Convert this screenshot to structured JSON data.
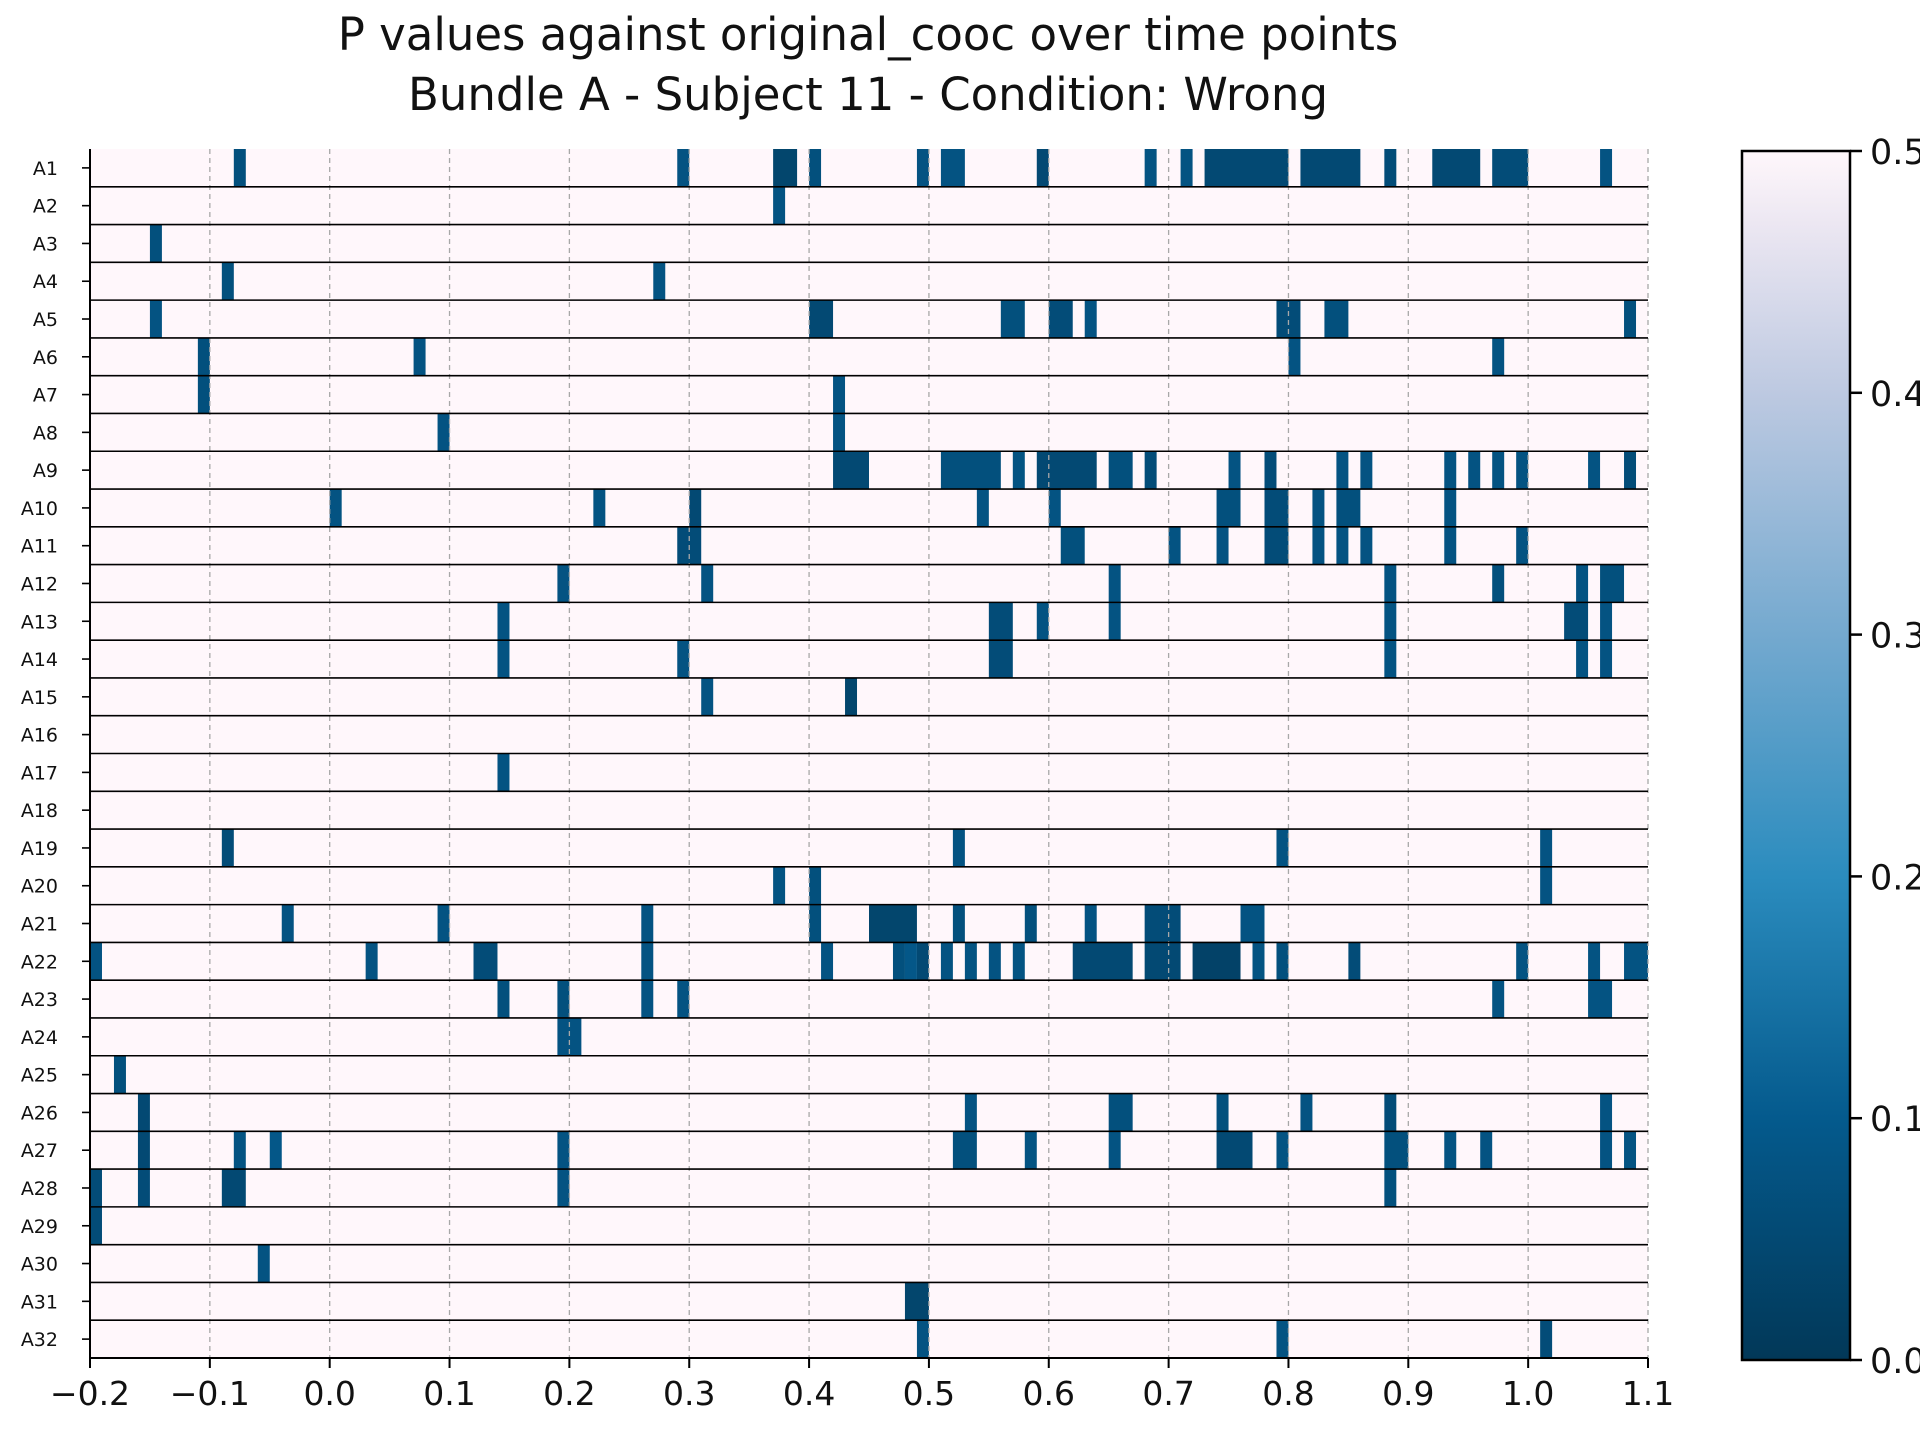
{
  "chart_data": {
    "type": "heatmap",
    "title": "P values against original_cooc over time points",
    "subtitle": "Bundle A - Subject 11 - Condition: Wrong",
    "xlabel": "",
    "ylabel": "",
    "x_ticks": [
      -0.2,
      -0.1,
      0.0,
      0.1,
      0.2,
      0.3,
      0.4,
      0.5,
      0.6,
      0.7,
      0.8,
      0.9,
      1.0,
      1.1
    ],
    "xlim": [
      -0.2,
      1.1
    ],
    "rows": [
      "A1",
      "A2",
      "A3",
      "A4",
      "A5",
      "A6",
      "A7",
      "A8",
      "A9",
      "A10",
      "A11",
      "A12",
      "A13",
      "A14",
      "A15",
      "A16",
      "A17",
      "A18",
      "A19",
      "A20",
      "A21",
      "A22",
      "A23",
      "A24",
      "A25",
      "A26",
      "A27",
      "A28",
      "A29",
      "A30",
      "A31",
      "A32"
    ],
    "colorbar": {
      "min": 0.0,
      "max": 0.5,
      "ticks": [
        0.0,
        0.1,
        0.2,
        0.3,
        0.4,
        0.5
      ],
      "colormap": "PuBu_r"
    },
    "background_value": 0.5,
    "grid": "vertical dashed at x ticks",
    "significant_cells": {
      "A1": [
        [
          -0.08,
          -0.07,
          0.07
        ],
        [
          0.29,
          0.3,
          0.08
        ],
        [
          0.37,
          0.39,
          0.04
        ],
        [
          0.4,
          0.41,
          0.07
        ],
        [
          0.49,
          0.5,
          0.08
        ],
        [
          0.51,
          0.53,
          0.08
        ],
        [
          0.59,
          0.6,
          0.05
        ],
        [
          0.68,
          0.69,
          0.08
        ],
        [
          0.71,
          0.72,
          0.08
        ],
        [
          0.73,
          0.8,
          0.05
        ],
        [
          0.81,
          0.86,
          0.05
        ],
        [
          0.88,
          0.89,
          0.06
        ],
        [
          0.92,
          0.96,
          0.05
        ],
        [
          0.97,
          1.0,
          0.06
        ],
        [
          1.06,
          1.07,
          0.08
        ]
      ],
      "A2": [
        [
          0.37,
          0.38,
          0.08
        ]
      ],
      "A3": [
        [
          -0.15,
          -0.14,
          0.07
        ]
      ],
      "A4": [
        [
          -0.09,
          -0.08,
          0.07
        ],
        [
          0.27,
          0.28,
          0.08
        ]
      ],
      "A5": [
        [
          -0.15,
          -0.14,
          0.08
        ],
        [
          0.4,
          0.42,
          0.05
        ],
        [
          0.56,
          0.58,
          0.07
        ],
        [
          0.6,
          0.62,
          0.06
        ],
        [
          0.63,
          0.64,
          0.08
        ],
        [
          0.79,
          0.81,
          0.06
        ],
        [
          0.83,
          0.85,
          0.07
        ],
        [
          1.08,
          1.09,
          0.07
        ]
      ],
      "A6": [
        [
          -0.11,
          -0.1,
          0.07
        ],
        [
          0.07,
          0.08,
          0.08
        ],
        [
          0.8,
          0.81,
          0.08
        ],
        [
          0.97,
          0.98,
          0.08
        ]
      ],
      "A7": [
        [
          -0.11,
          -0.1,
          0.07
        ],
        [
          0.42,
          0.43,
          0.08
        ]
      ],
      "A8": [
        [
          0.09,
          0.1,
          0.08
        ],
        [
          0.42,
          0.43,
          0.08
        ]
      ],
      "A9": [
        [
          0.42,
          0.45,
          0.05
        ],
        [
          0.51,
          0.56,
          0.07
        ],
        [
          0.57,
          0.58,
          0.08
        ],
        [
          0.59,
          0.64,
          0.05
        ],
        [
          0.65,
          0.67,
          0.07
        ],
        [
          0.68,
          0.69,
          0.06
        ],
        [
          0.75,
          0.76,
          0.08
        ],
        [
          0.78,
          0.79,
          0.06
        ],
        [
          0.84,
          0.85,
          0.08
        ],
        [
          0.86,
          0.87,
          0.08
        ],
        [
          0.93,
          0.94,
          0.08
        ],
        [
          0.95,
          0.96,
          0.08
        ],
        [
          0.97,
          0.98,
          0.08
        ],
        [
          0.99,
          1.0,
          0.08
        ],
        [
          1.05,
          1.06,
          0.08
        ],
        [
          1.08,
          1.09,
          0.06
        ]
      ],
      "A10": [
        [
          0.0,
          0.01,
          0.08
        ],
        [
          0.22,
          0.23,
          0.08
        ],
        [
          0.3,
          0.31,
          0.05
        ],
        [
          0.54,
          0.55,
          0.08
        ],
        [
          0.6,
          0.61,
          0.08
        ],
        [
          0.74,
          0.76,
          0.07
        ],
        [
          0.78,
          0.8,
          0.06
        ],
        [
          0.82,
          0.83,
          0.08
        ],
        [
          0.84,
          0.86,
          0.07
        ],
        [
          0.93,
          0.94,
          0.08
        ]
      ],
      "A11": [
        [
          0.29,
          0.31,
          0.06
        ],
        [
          0.61,
          0.63,
          0.07
        ],
        [
          0.7,
          0.71,
          0.08
        ],
        [
          0.74,
          0.75,
          0.08
        ],
        [
          0.78,
          0.8,
          0.06
        ],
        [
          0.82,
          0.83,
          0.08
        ],
        [
          0.84,
          0.85,
          0.08
        ],
        [
          0.86,
          0.87,
          0.08
        ],
        [
          0.93,
          0.94,
          0.08
        ],
        [
          0.99,
          1.0,
          0.08
        ]
      ],
      "A12": [
        [
          0.19,
          0.2,
          0.08
        ],
        [
          0.31,
          0.32,
          0.08
        ],
        [
          0.65,
          0.66,
          0.08
        ],
        [
          0.88,
          0.89,
          0.08
        ],
        [
          0.97,
          0.98,
          0.07
        ],
        [
          1.04,
          1.05,
          0.08
        ],
        [
          1.06,
          1.08,
          0.07
        ]
      ],
      "A13": [
        [
          0.14,
          0.15,
          0.08
        ],
        [
          0.55,
          0.57,
          0.06
        ],
        [
          0.59,
          0.6,
          0.08
        ],
        [
          0.65,
          0.66,
          0.08
        ],
        [
          0.88,
          0.89,
          0.08
        ],
        [
          1.03,
          1.05,
          0.06
        ],
        [
          1.06,
          1.07,
          0.08
        ]
      ],
      "A14": [
        [
          0.14,
          0.15,
          0.08
        ],
        [
          0.29,
          0.3,
          0.08
        ],
        [
          0.55,
          0.57,
          0.06
        ],
        [
          0.88,
          0.89,
          0.08
        ],
        [
          1.04,
          1.05,
          0.08
        ],
        [
          1.06,
          1.07,
          0.08
        ]
      ],
      "A15": [
        [
          0.31,
          0.32,
          0.08
        ],
        [
          0.43,
          0.44,
          0.04
        ]
      ],
      "A16": [],
      "A17": [
        [
          0.14,
          0.15,
          0.08
        ]
      ],
      "A18": [],
      "A19": [
        [
          -0.09,
          -0.08,
          0.06
        ],
        [
          0.52,
          0.53,
          0.08
        ],
        [
          0.79,
          0.8,
          0.08
        ],
        [
          1.01,
          1.02,
          0.08
        ]
      ],
      "A20": [
        [
          0.37,
          0.38,
          0.08
        ],
        [
          0.4,
          0.41,
          0.07
        ],
        [
          1.01,
          1.02,
          0.08
        ]
      ],
      "A21": [
        [
          -0.04,
          -0.03,
          0.08
        ],
        [
          0.09,
          0.1,
          0.08
        ],
        [
          0.26,
          0.27,
          0.08
        ],
        [
          0.4,
          0.41,
          0.07
        ],
        [
          0.45,
          0.49,
          0.04
        ],
        [
          0.52,
          0.53,
          0.07
        ],
        [
          0.58,
          0.59,
          0.07
        ],
        [
          0.63,
          0.64,
          0.08
        ],
        [
          0.68,
          0.71,
          0.06
        ],
        [
          0.76,
          0.78,
          0.08
        ]
      ],
      "A22": [
        [
          -0.2,
          -0.19,
          0.08
        ],
        [
          0.03,
          0.04,
          0.08
        ],
        [
          0.12,
          0.14,
          0.06
        ],
        [
          0.26,
          0.27,
          0.08
        ],
        [
          0.41,
          0.42,
          0.08
        ],
        [
          0.47,
          0.48,
          0.07
        ],
        [
          0.48,
          0.49,
          0.09
        ],
        [
          0.49,
          0.5,
          0.05
        ],
        [
          0.51,
          0.52,
          0.08
        ],
        [
          0.53,
          0.54,
          0.08
        ],
        [
          0.55,
          0.56,
          0.08
        ],
        [
          0.57,
          0.58,
          0.08
        ],
        [
          0.62,
          0.67,
          0.05
        ],
        [
          0.68,
          0.71,
          0.05
        ],
        [
          0.72,
          0.76,
          0.03
        ],
        [
          0.77,
          0.78,
          0.08
        ],
        [
          0.79,
          0.8,
          0.07
        ],
        [
          0.85,
          0.86,
          0.06
        ],
        [
          0.99,
          1.0,
          0.08
        ],
        [
          1.05,
          1.06,
          0.08
        ],
        [
          1.08,
          1.1,
          0.08
        ]
      ],
      "A23": [
        [
          0.14,
          0.15,
          0.07
        ],
        [
          0.19,
          0.2,
          0.07
        ],
        [
          0.26,
          0.27,
          0.08
        ],
        [
          0.29,
          0.3,
          0.08
        ],
        [
          0.97,
          0.98,
          0.08
        ],
        [
          1.05,
          1.07,
          0.08
        ]
      ],
      "A24": [
        [
          0.19,
          0.21,
          0.08
        ]
      ],
      "A25": [
        [
          -0.18,
          -0.17,
          0.07
        ]
      ],
      "A26": [
        [
          -0.16,
          -0.15,
          0.05
        ],
        [
          0.53,
          0.54,
          0.08
        ],
        [
          0.65,
          0.67,
          0.07
        ],
        [
          0.74,
          0.75,
          0.07
        ],
        [
          0.81,
          0.82,
          0.08
        ],
        [
          0.88,
          0.89,
          0.06
        ],
        [
          1.06,
          1.07,
          0.08
        ]
      ],
      "A27": [
        [
          -0.16,
          -0.15,
          0.05
        ],
        [
          -0.08,
          -0.07,
          0.08
        ],
        [
          -0.05,
          -0.04,
          0.09
        ],
        [
          0.19,
          0.2,
          0.08
        ],
        [
          0.52,
          0.54,
          0.07
        ],
        [
          0.58,
          0.59,
          0.08
        ],
        [
          0.65,
          0.66,
          0.08
        ],
        [
          0.74,
          0.77,
          0.05
        ],
        [
          0.79,
          0.8,
          0.08
        ],
        [
          0.88,
          0.9,
          0.07
        ],
        [
          0.93,
          0.94,
          0.08
        ],
        [
          0.96,
          0.97,
          0.08
        ],
        [
          1.06,
          1.07,
          0.08
        ],
        [
          1.08,
          1.09,
          0.08
        ]
      ],
      "A28": [
        [
          -0.2,
          -0.19,
          0.06
        ],
        [
          -0.16,
          -0.15,
          0.06
        ],
        [
          -0.09,
          -0.07,
          0.05
        ],
        [
          0.19,
          0.2,
          0.08
        ],
        [
          0.88,
          0.89,
          0.07
        ]
      ],
      "A29": [
        [
          -0.2,
          -0.19,
          0.06
        ]
      ],
      "A30": [
        [
          -0.06,
          -0.05,
          0.08
        ]
      ],
      "A31": [
        [
          0.48,
          0.5,
          0.04
        ]
      ],
      "A32": [
        [
          0.49,
          0.5,
          0.08
        ],
        [
          0.79,
          0.8,
          0.08
        ],
        [
          1.01,
          1.02,
          0.06
        ]
      ]
    }
  }
}
